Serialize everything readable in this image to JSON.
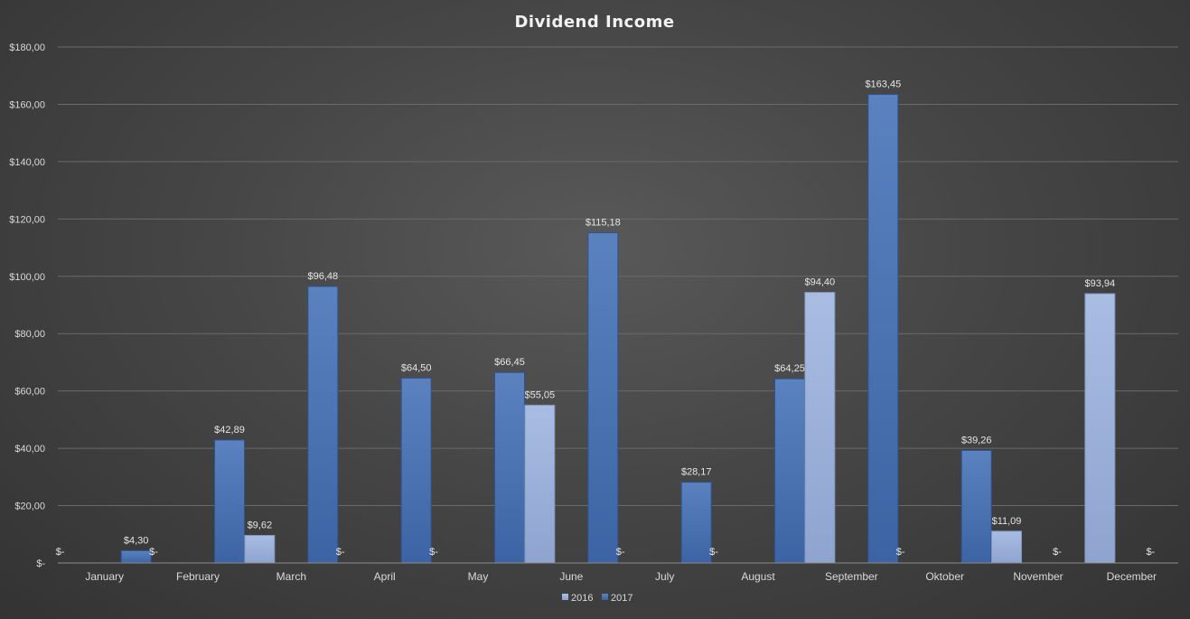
{
  "chart_data": {
    "type": "bar",
    "title": "Dividend Income",
    "xlabel": "",
    "ylabel": "",
    "categories": [
      "January",
      "February",
      "March",
      "April",
      "May",
      "June",
      "July",
      "August",
      "September",
      "Oktober",
      "November",
      "December"
    ],
    "series": [
      {
        "name": "2016",
        "color": "#9fb3d9",
        "values": [
          0,
          0,
          9.62,
          0,
          0,
          55.05,
          0,
          0,
          94.4,
          0,
          11.09,
          93.94
        ],
        "labels": [
          "$-",
          "$-",
          "$9,62",
          "$-",
          "$-",
          "$55,05",
          "$-",
          "$-",
          "$94,40",
          "$-",
          "$11,09",
          "$93,94"
        ]
      },
      {
        "name": "2017",
        "color": "#4a72b0",
        "values": [
          4.3,
          42.89,
          96.48,
          64.5,
          66.45,
          115.18,
          28.17,
          64.25,
          163.45,
          39.26,
          0,
          0
        ],
        "labels": [
          "$4,30",
          "$42,89",
          "$96,48",
          "$64,50",
          "$66,45",
          "$115,18",
          "$28,17",
          "$64,25",
          "$163,45",
          "$39,26",
          "$-",
          "$-"
        ]
      }
    ],
    "ylim": [
      0,
      180
    ],
    "yticks": [
      0,
      20,
      40,
      60,
      80,
      100,
      120,
      140,
      160,
      180
    ],
    "ytick_labels": [
      "$-",
      "$20,00",
      "$40,00",
      "$60,00",
      "$80,00",
      "$100,00",
      "$120,00",
      "$140,00",
      "$160,00",
      "$180,00"
    ],
    "grid": true,
    "legend_position": "bottom"
  }
}
